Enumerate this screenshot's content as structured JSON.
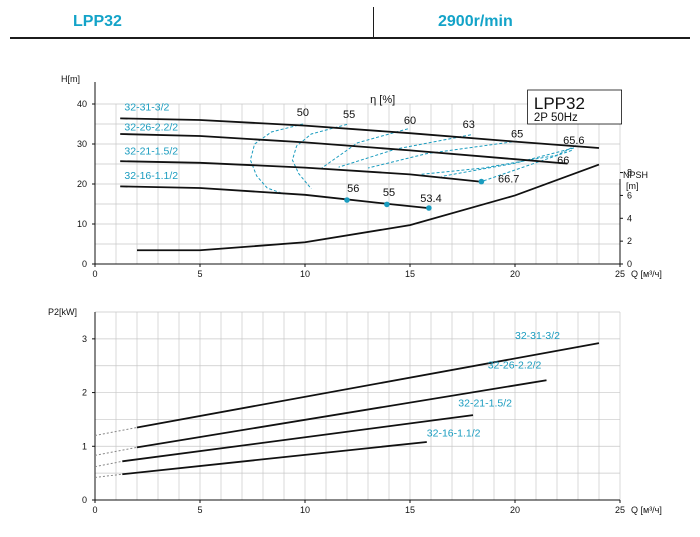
{
  "header": {
    "model": "LPP32",
    "speed": "2900r/min"
  },
  "colors": {
    "accent": "#13a3c8",
    "curve": "#111111",
    "grid": "#c8c8c8",
    "dashed": "#1a9cbf"
  },
  "chart_data": [
    {
      "type": "line",
      "title": "LPP32",
      "subtitle": "2P  50Hz",
      "ylabel": "H[m]",
      "xlabel": "Q [м³/ч]",
      "y2label": "NPSH [m]",
      "efficiency_label": "η  [%]",
      "xlim": [
        0,
        25
      ],
      "ylim": [
        0,
        40
      ],
      "y2lim": [
        0,
        14
      ],
      "x_ticks": [
        0,
        5,
        10,
        15,
        20,
        25
      ],
      "y_ticks": [
        0,
        10,
        20,
        30,
        40
      ],
      "y2_ticks": [
        0,
        2,
        4,
        6,
        8
      ],
      "grid": true,
      "series": [
        {
          "name": "32-31-3/2",
          "x": [
            1.2,
            5,
            10,
            15,
            20,
            24
          ],
          "y": [
            36.4,
            36.0,
            34.6,
            32.7,
            30.6,
            29.0
          ]
        },
        {
          "name": "32-26-2.2/2",
          "x": [
            1.2,
            5,
            10,
            15,
            20,
            22.5
          ],
          "y": [
            32.5,
            32.0,
            30.4,
            28.4,
            26.2,
            25.1
          ]
        },
        {
          "name": "32-21-1.5/2",
          "x": [
            1.2,
            5,
            10,
            15,
            18.5
          ],
          "y": [
            25.7,
            25.3,
            24.1,
            22.4,
            20.5
          ]
        },
        {
          "name": "32-16-1.1/2",
          "x": [
            1.2,
            5,
            10,
            14,
            16
          ],
          "y": [
            19.4,
            19.0,
            17.3,
            15.0,
            13.9
          ]
        }
      ],
      "npsh": {
        "name": "NPSH",
        "x": [
          2,
          5,
          10,
          15,
          20,
          24
        ],
        "y": [
          1.2,
          1.2,
          1.9,
          3.4,
          6.0,
          8.7
        ]
      },
      "efficiency_points": [
        {
          "x": 12,
          "y": 16.0
        },
        {
          "x": 13.9,
          "y": 14.9
        },
        {
          "x": 15.9,
          "y": 14.0
        },
        {
          "x": 18.4,
          "y": 20.6
        }
      ],
      "efficiency_labels": [
        {
          "text": "50",
          "x": 9.9,
          "y": 37.0
        },
        {
          "text": "55",
          "x": 12.1,
          "y": 36.5
        },
        {
          "text": "60",
          "x": 15.0,
          "y": 35.0
        },
        {
          "text": "63",
          "x": 17.8,
          "y": 34.0
        },
        {
          "text": "65",
          "x": 20.1,
          "y": 31.6
        },
        {
          "text": "65.6",
          "x": 22.8,
          "y": 30.0
        },
        {
          "text": "66",
          "x": 22.3,
          "y": 25.0
        },
        {
          "text": "66.7",
          "x": 19.7,
          "y": 20.4
        },
        {
          "text": "56",
          "x": 12.3,
          "y": 18.0
        },
        {
          "text": "55",
          "x": 14.0,
          "y": 17.0
        },
        {
          "text": "53.4",
          "x": 16.0,
          "y": 15.5
        }
      ],
      "efficiency_isolines": [
        {
          "label": "50",
          "x": [
            9.9,
            8.4,
            7.6,
            7.4,
            7.7,
            8.2,
            9.0
          ],
          "y": [
            35.0,
            33.0,
            30.0,
            26.0,
            22.0,
            19.0,
            17.5
          ]
        },
        {
          "label": "55",
          "x": [
            12.0,
            10.3,
            9.6,
            9.4,
            9.7,
            10.3
          ],
          "y": [
            34.9,
            32.5,
            29.5,
            26.0,
            22.6,
            18.8
          ]
        },
        {
          "label": "60",
          "x": [
            14.9,
            12.5,
            10.8
          ],
          "y": [
            33.8,
            30.3,
            24.0
          ]
        },
        {
          "label": "63",
          "x": [
            17.9,
            14.3,
            11.6
          ],
          "y": [
            32.3,
            28.7,
            24.2
          ]
        },
        {
          "label": "65",
          "x": [
            20.1,
            15.8,
            13.0
          ],
          "y": [
            30.7,
            27.6,
            24.0
          ]
        },
        {
          "label": "65.6",
          "x": [
            22.9,
            22.0,
            18.5,
            15.5
          ],
          "y": [
            29.6,
            27.2,
            24.0,
            22.4
          ]
        },
        {
          "label": "66",
          "x": [
            22.8,
            20.0,
            16.5
          ],
          "y": [
            29.0,
            25.2,
            21.9
          ]
        },
        {
          "label": "66.7",
          "x": [
            22.7,
            18.4
          ],
          "y": [
            28.4,
            20.6
          ]
        }
      ]
    },
    {
      "type": "line",
      "ylabel": "P2[kW]",
      "xlabel": "Q [м³/ч]",
      "xlim": [
        0,
        25
      ],
      "ylim": [
        0,
        3.5
      ],
      "x_ticks": [
        0,
        5,
        10,
        15,
        20,
        25
      ],
      "y_ticks": [
        0,
        1,
        2,
        3
      ],
      "grid": true,
      "series": [
        {
          "name": "32-31-3/2",
          "x": [
            0,
            2,
            24
          ],
          "y": [
            1.2,
            1.35,
            2.92
          ]
        },
        {
          "name": "32-26-2.2/2",
          "x": [
            0,
            2,
            21.5
          ],
          "y": [
            0.83,
            0.98,
            2.23
          ]
        },
        {
          "name": "32-21-1.5/2",
          "x": [
            0,
            1.3,
            18
          ],
          "y": [
            0.62,
            0.72,
            1.58
          ]
        },
        {
          "name": "32-16-1.1/2",
          "x": [
            0,
            1.3,
            15.8
          ],
          "y": [
            0.42,
            0.48,
            1.08
          ]
        }
      ]
    }
  ]
}
